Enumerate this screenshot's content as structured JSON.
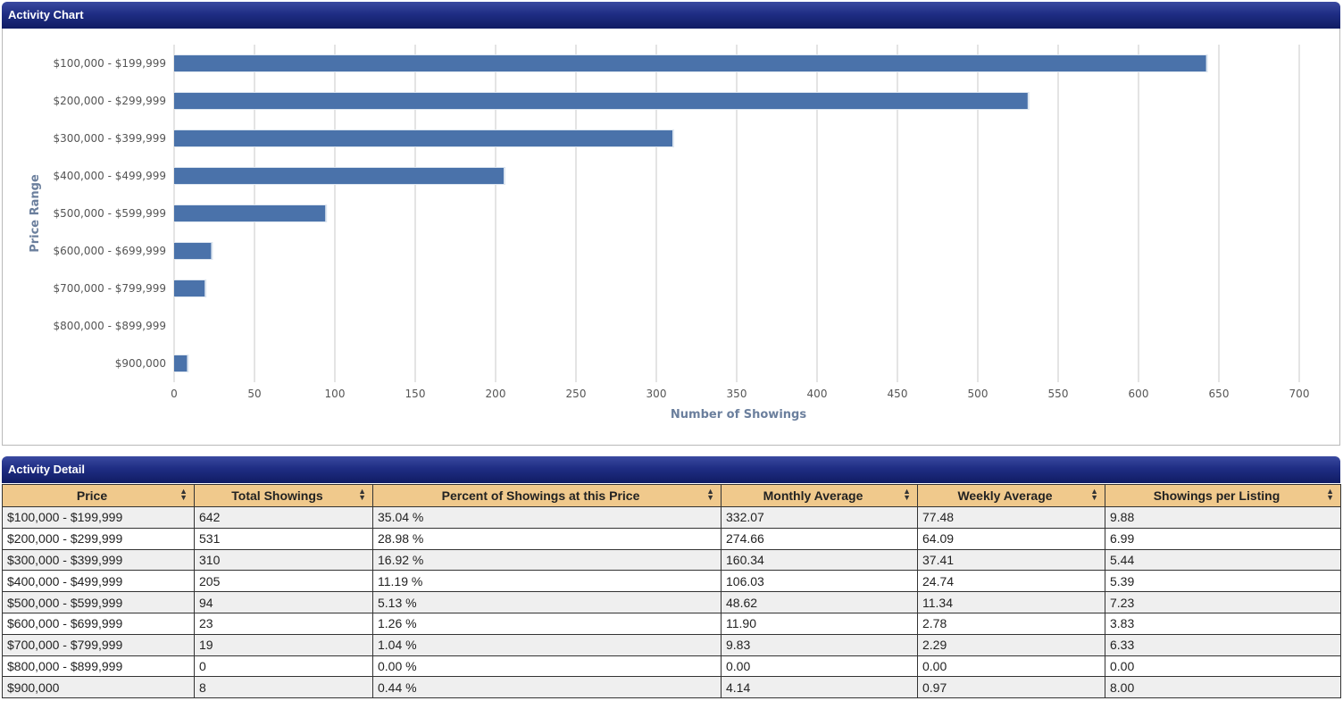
{
  "chart_panel": {
    "title": "Activity Chart"
  },
  "detail_panel": {
    "title": "Activity Detail"
  },
  "colors": {
    "bar": "#4a72aa",
    "header": "#1f2d84",
    "table_header": "#f0c98c",
    "row_alt": "#efefef"
  },
  "chart_data": {
    "type": "bar",
    "orientation": "horizontal",
    "categories": [
      "$100,000 - $199,999",
      "$200,000 - $299,999",
      "$300,000 - $399,999",
      "$400,000 - $499,999",
      "$500,000 - $599,999",
      "$600,000 - $699,999",
      "$700,000 - $799,999",
      "$800,000 - $899,999",
      "$900,000"
    ],
    "values": [
      642,
      531,
      310,
      205,
      94,
      23,
      19,
      0,
      8
    ],
    "xlabel": "Number of Showings",
    "ylabel": "Price Range",
    "xlim": [
      0,
      700
    ],
    "xticks": [
      0,
      50,
      100,
      150,
      200,
      250,
      300,
      350,
      400,
      450,
      500,
      550,
      600,
      650,
      700
    ],
    "grid": true
  },
  "table": {
    "headers": [
      "Price",
      "Total Showings",
      "Percent of Showings at this Price",
      "Monthly Average",
      "Weekly Average",
      "Showings per Listing"
    ],
    "sort_icon": "sort-up-down-icon",
    "rows": [
      [
        "$100,000 - $199,999",
        "642",
        "35.04 %",
        "332.07",
        "77.48",
        "9.88"
      ],
      [
        "$200,000 - $299,999",
        "531",
        "28.98 %",
        "274.66",
        "64.09",
        "6.99"
      ],
      [
        "$300,000 - $399,999",
        "310",
        "16.92 %",
        "160.34",
        "37.41",
        "5.44"
      ],
      [
        "$400,000 - $499,999",
        "205",
        "11.19 %",
        "106.03",
        "24.74",
        "5.39"
      ],
      [
        "$500,000 - $599,999",
        "94",
        "5.13 %",
        "48.62",
        "11.34",
        "7.23"
      ],
      [
        "$600,000 - $699,999",
        "23",
        "1.26 %",
        "11.90",
        "2.78",
        "3.83"
      ],
      [
        "$700,000 - $799,999",
        "19",
        "1.04 %",
        "9.83",
        "2.29",
        "6.33"
      ],
      [
        "$800,000 - $899,999",
        "0",
        "0.00 %",
        "0.00",
        "0.00",
        "0.00"
      ],
      [
        "$900,000",
        "8",
        "0.44 %",
        "4.14",
        "0.97",
        "8.00"
      ]
    ]
  }
}
